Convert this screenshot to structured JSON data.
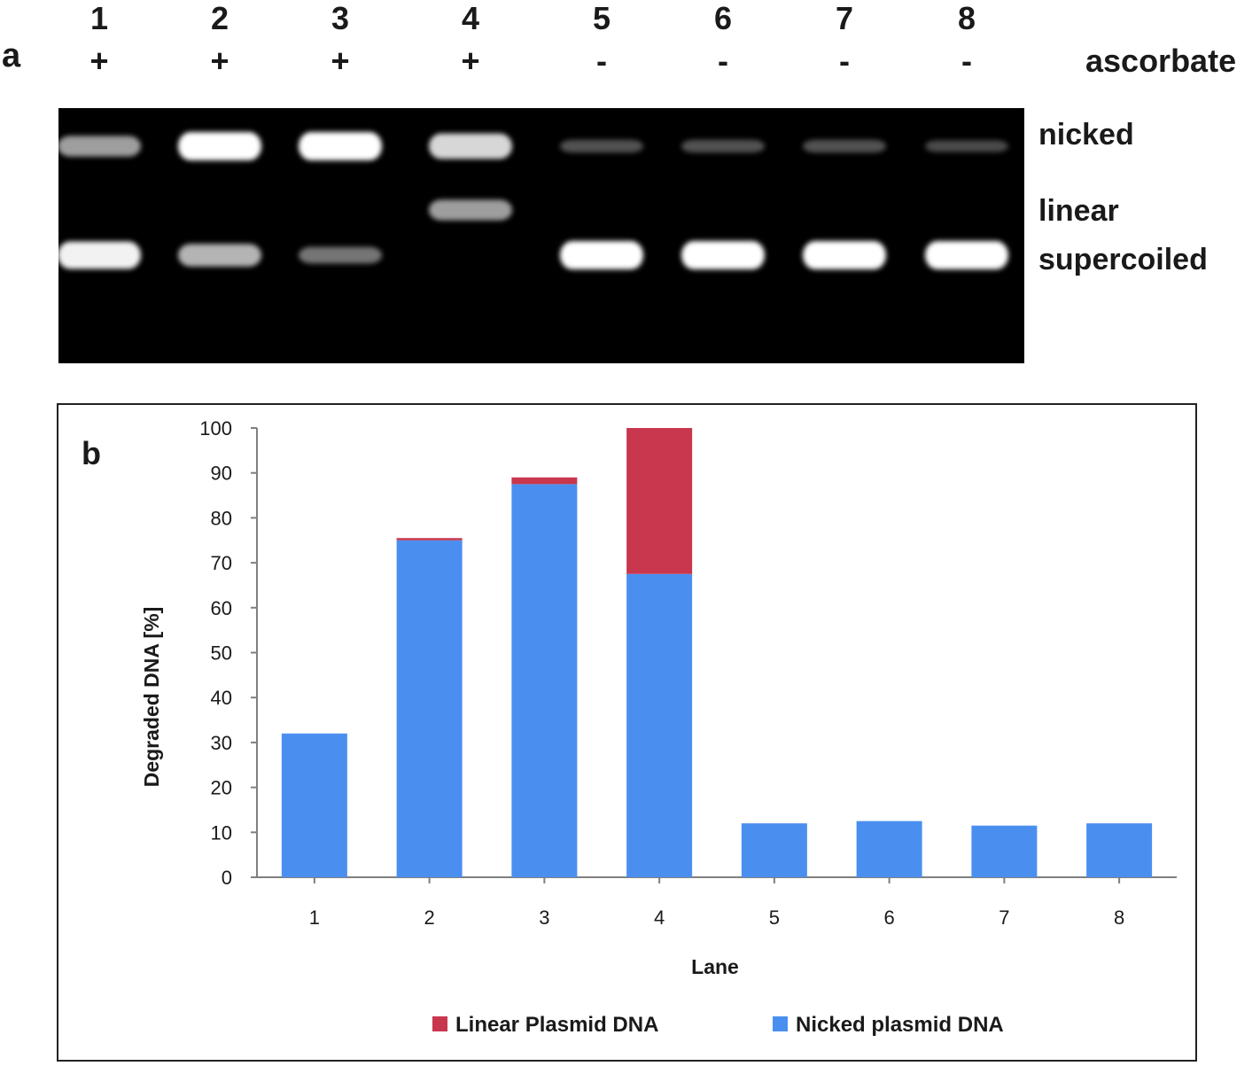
{
  "panel_a": {
    "letter": "a",
    "condition_label": "ascorbate",
    "lanes": [
      {
        "number": "1",
        "sign": "+"
      },
      {
        "number": "2",
        "sign": "+"
      },
      {
        "number": "3",
        "sign": "+"
      },
      {
        "number": "4",
        "sign": "+"
      },
      {
        "number": "5",
        "sign": "-"
      },
      {
        "number": "6",
        "sign": "-"
      },
      {
        "number": "7",
        "sign": "-"
      },
      {
        "number": "8",
        "sign": "-"
      }
    ],
    "band_labels": {
      "nicked": "nicked",
      "linear": "linear",
      "supercoiled": "supercoiled"
    },
    "bands": [
      {
        "lane": "1",
        "nicked": 0.6,
        "linear": 0,
        "supercoiled": 0.95
      },
      {
        "lane": "2",
        "nicked": 1.0,
        "linear": 0,
        "supercoiled": 0.7
      },
      {
        "lane": "3",
        "nicked": 1.0,
        "linear": 0,
        "supercoiled": 0.4
      },
      {
        "lane": "4",
        "nicked": 0.85,
        "linear": 0.6,
        "supercoiled": 0
      },
      {
        "lane": "5",
        "nicked": 0.2,
        "linear": 0,
        "supercoiled": 1.0
      },
      {
        "lane": "6",
        "nicked": 0.2,
        "linear": 0,
        "supercoiled": 1.0
      },
      {
        "lane": "7",
        "nicked": 0.2,
        "linear": 0,
        "supercoiled": 1.0
      },
      {
        "lane": "8",
        "nicked": 0.15,
        "linear": 0,
        "supercoiled": 1.0
      }
    ]
  },
  "panel_b": {
    "letter": "b"
  },
  "chart_data": {
    "type": "bar",
    "stacked": true,
    "categories": [
      "1",
      "2",
      "3",
      "4",
      "5",
      "6",
      "7",
      "8"
    ],
    "series": [
      {
        "name": "Nicked plasmid DNA",
        "color": "#4a8ff0",
        "values": [
          32,
          75,
          87.5,
          67.5,
          12,
          12.5,
          11.5,
          12
        ]
      },
      {
        "name": "Linear Plasmid DNA",
        "color": "#c8374e",
        "values": [
          0,
          0.5,
          1.5,
          32.5,
          0,
          0,
          0,
          0
        ]
      }
    ],
    "xlabel": "Lane",
    "ylabel": "Degraded DNA [%]",
    "ylim": [
      0,
      100
    ],
    "yticks": [
      0,
      10,
      20,
      30,
      40,
      50,
      60,
      70,
      80,
      90,
      100
    ],
    "grid": false,
    "legend_position": "bottom",
    "legend_order": [
      "Linear Plasmid DNA",
      "Nicked plasmid DNA"
    ]
  }
}
